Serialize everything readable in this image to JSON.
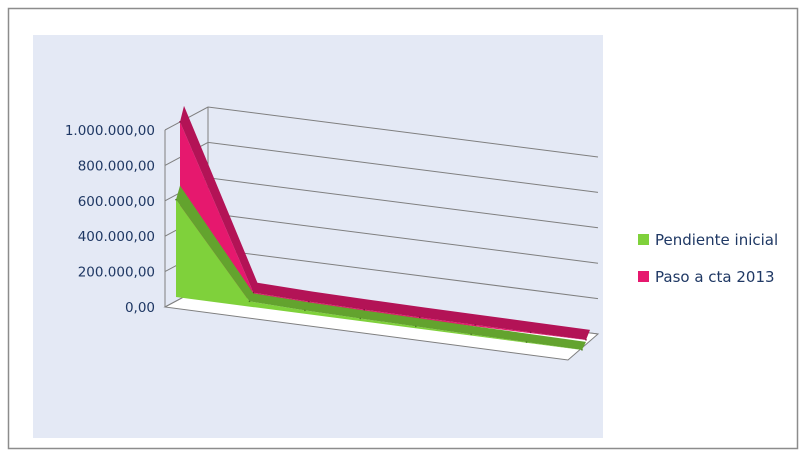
{
  "chart_data": {
    "type": "area",
    "view": "3d",
    "grid": true,
    "legend": "right",
    "ylim": [
      0,
      1000000
    ],
    "yticks": [
      {
        "value": 0,
        "label": "0,00"
      },
      {
        "value": 200000,
        "label": "200.000,00"
      },
      {
        "value": 400000,
        "label": "400.000,00"
      },
      {
        "value": 600000,
        "label": "600.000,00"
      },
      {
        "value": 800000,
        "label": "800.000,00"
      },
      {
        "value": 1000000,
        "label": "1.000.000,00"
      }
    ],
    "series": [
      {
        "name": "Pendiente inicial",
        "color": "#7fd13b",
        "values": [
          550000,
          18000,
          10000,
          7000,
          5000,
          3000,
          2000,
          1000
        ]
      },
      {
        "name": "Paso a cta 2013",
        "color": "#e6186e",
        "values": [
          950000,
          25000,
          15000,
          10000,
          7000,
          5000,
          3000,
          1000
        ]
      }
    ]
  },
  "colors": {
    "plot_background": "#e4e9f5",
    "border": "#8c8c8c",
    "gridline": "#7f7f7f",
    "axis_text": "#1f3864"
  }
}
